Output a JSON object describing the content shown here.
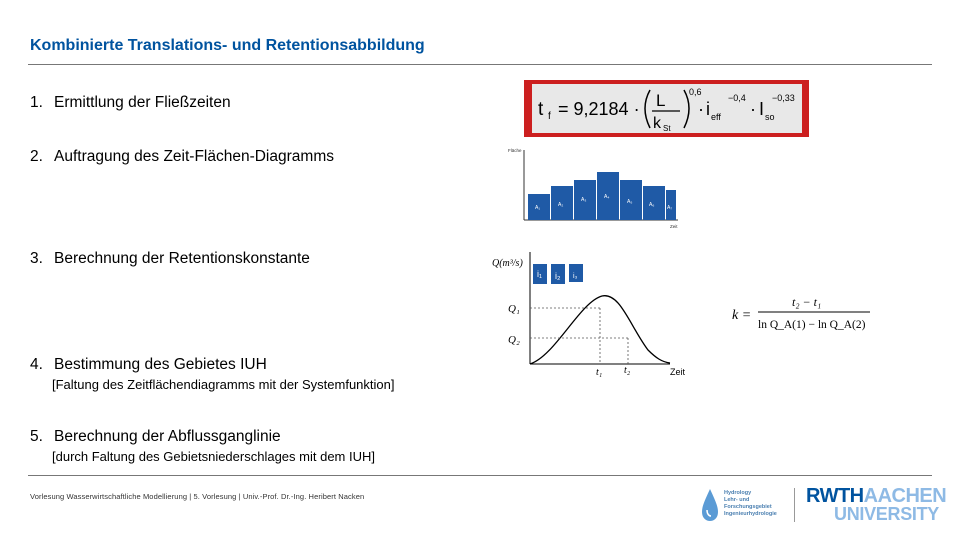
{
  "title": "Kombinierte Translations- und Retentionsabbildung",
  "steps": [
    {
      "num": "1.",
      "text": "Ermittlung der Fließzeiten"
    },
    {
      "num": "2.",
      "text": "Auftragung des Zeit-Flächen-Diagramms"
    },
    {
      "num": "3.",
      "text": "Berechnung der Retentionskonstante"
    },
    {
      "num": "4.",
      "text": "Bestimmung des Gebietes IUH",
      "sub": "[Faltung des Zeitflächendiagramms mit der Systemfunktion]"
    },
    {
      "num": "5.",
      "text": "Berechnung der Abflussganglinie",
      "sub": "[durch Faltung des Gebietsniederschlages mit dem IUH]"
    }
  ],
  "formula_tf": {
    "lhs": "t",
    "lhs_sub": "f",
    "eq": "= 9,2184 ·",
    "num": "L",
    "den": "k",
    "den_sub": "St",
    "exp1": "0,6",
    "i": "i",
    "i_sub": "eff",
    "exp2": "−0,4",
    "dot1": "·",
    "dot2": "·",
    "I": "I",
    "I_sub": "so",
    "exp3": "−0,33"
  },
  "area_diagram": {
    "ylabel": "Fläche",
    "xlabel": "Zeit",
    "labels": [
      "A₁",
      "A₂",
      "A₃",
      "A₄",
      "A₅",
      "A₆",
      "A₇"
    ]
  },
  "iuh_chart": {
    "ylabel": "Q(m³/s)",
    "xlabel": "Zeit",
    "rain_labels": [
      "i₁",
      "i₂",
      "i₃"
    ],
    "q1": "Q₁",
    "q2": "Q₂",
    "t1": "t₁",
    "t2": "t₂"
  },
  "formula_k": {
    "lhs": "k =",
    "num": "t₂ − t₁",
    "den": "ln Q_A(1) − ln Q_A(2)"
  },
  "footer": "Vorlesung Wasserwirtschaftliche Modellierung | 5. Vorlesung | Univ.-Prof. Dr.-Ing. Heribert Nacken",
  "logo_hydro": [
    "Hydrology",
    "Lehr- und",
    "Forschungsgebiet",
    "Ingenieurhydrologie"
  ],
  "logo_rwth": {
    "line1_a": "RWTH",
    "line1_b": "AACHEN",
    "line2": "UNIVERSITY"
  },
  "colors": {
    "title": "#00539f",
    "accent_red": "#cc1f1f",
    "bar_blue": "#1f5aa6"
  }
}
